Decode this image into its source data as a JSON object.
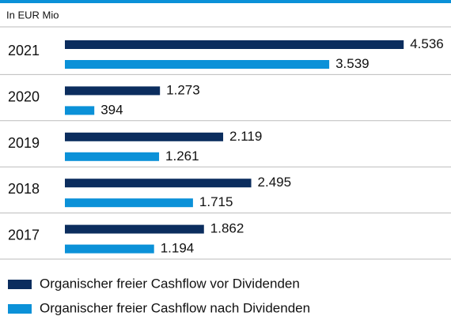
{
  "chart_data": {
    "type": "bar",
    "orientation": "horizontal",
    "subtitle": "In EUR Mio",
    "categories": [
      "2021",
      "2020",
      "2019",
      "2018",
      "2017"
    ],
    "series": [
      {
        "name": "Organischer freier Cashflow vor Dividenden",
        "color": "#0b2d5e",
        "values": [
          4536,
          1273,
          2119,
          2495,
          1862
        ],
        "value_labels": [
          "4.536",
          "1.273",
          "2.119",
          "2.495",
          "1.862"
        ]
      },
      {
        "name": "Organischer freier Cashflow nach Dividenden",
        "color": "#0b91d8",
        "values": [
          3539,
          394,
          1261,
          1715,
          1194
        ],
        "value_labels": [
          "3.539",
          "394",
          "1.261",
          "1.715",
          "1.194"
        ]
      }
    ],
    "legend": "bottom"
  }
}
